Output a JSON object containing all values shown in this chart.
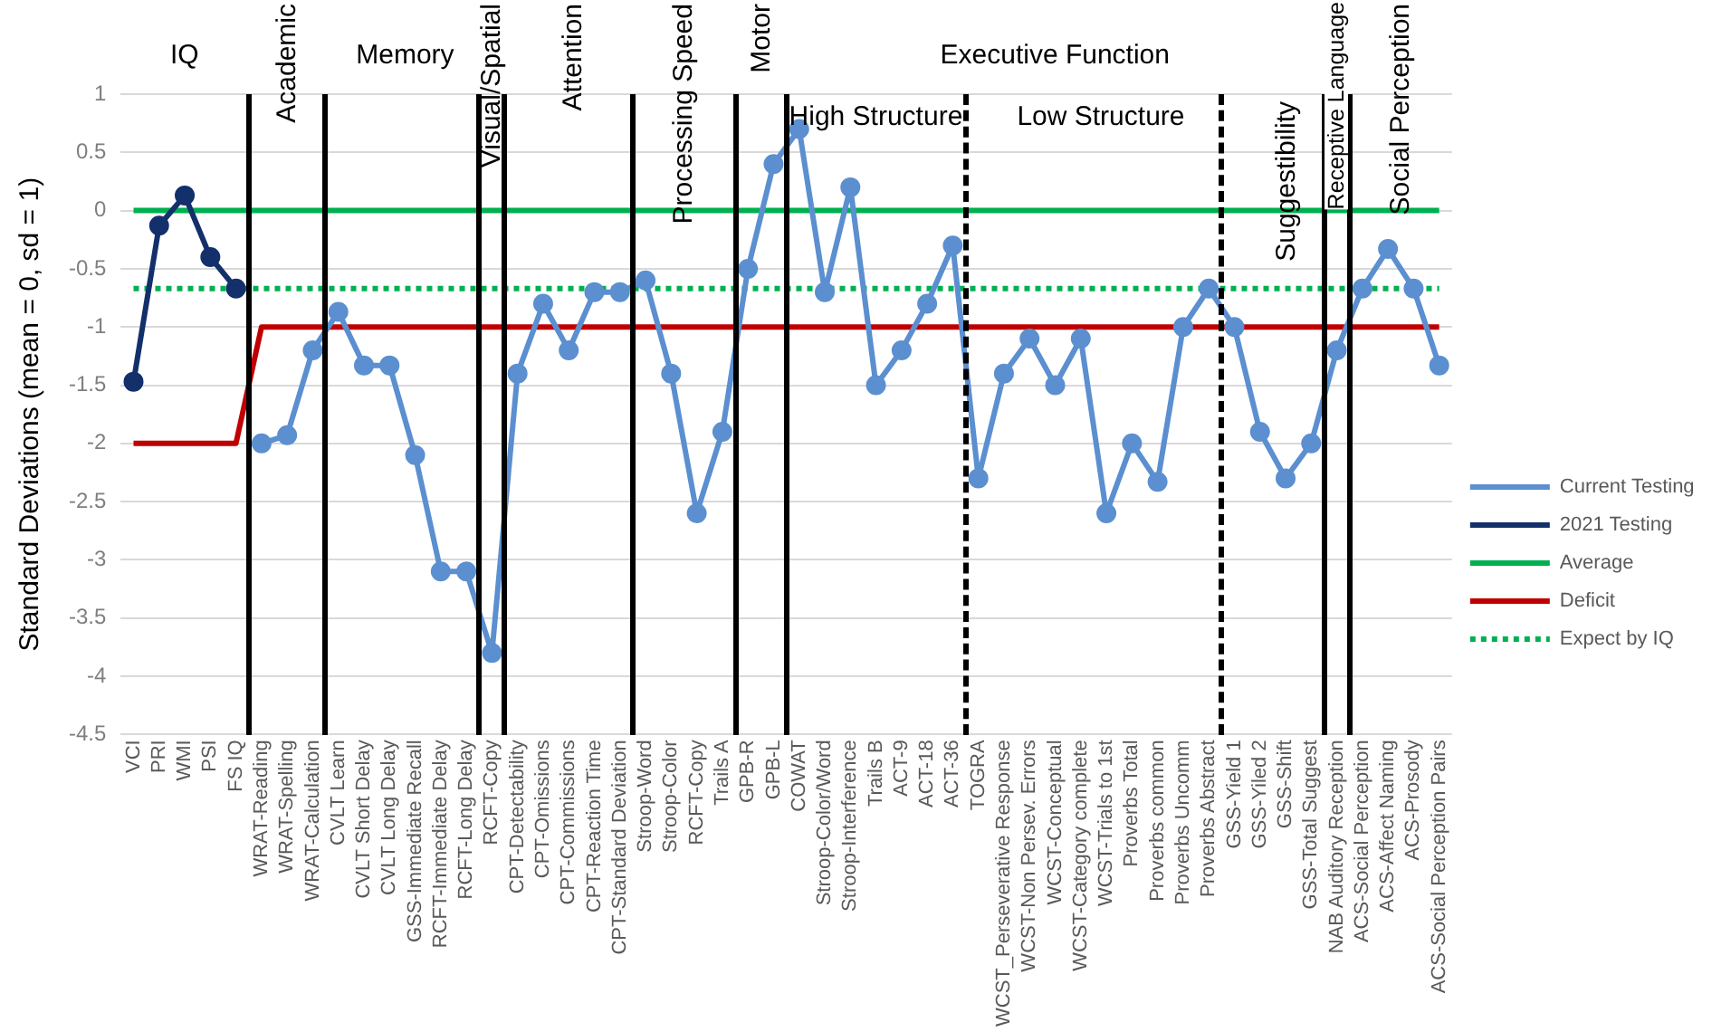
{
  "chart_data": {
    "type": "line",
    "categories": [
      "VCI",
      "PRI",
      "WMI",
      "PSI",
      "FS IQ",
      "WRAT-Reading",
      "WRAT-Spelling",
      "WRAT-Calculation",
      "CVLT Learn",
      "CVLT Short Delay",
      "CVLT Long Delay",
      "GSS-Immediate Recall",
      "RCFT-Immediate Delay",
      "RCFT-Long Delay",
      "RCFT-Copy",
      "CPT-Detectability",
      "CPT-Omissions",
      "CPT-Commissions",
      "CPT-Reaction Time",
      "CPT-Standard Deviation",
      "Stroop-Word",
      "Stroop-Color",
      "RCFT-Copy",
      "Trails A",
      "GPB-R",
      "GPB-L",
      "COWAT",
      "Stroop-Color/Word",
      "Stroop-Interference",
      "Trails B",
      "ACT-9",
      "ACT-18",
      "ACT-36",
      "TOGRA",
      "WCST_Perseverative Response",
      "WCST-Non Persev. Errors",
      "WCST-Conceptual",
      "WCST-Category complete",
      "WCST-Trials to 1st",
      "Proverbs Total",
      "Proverbs common",
      "Proverbs Uncomm",
      "Proverbs Abstract",
      "GSS-Yield 1",
      "GSS-Yiled 2",
      "GSS-Shift",
      "GSS-Total Suggest",
      "NAB Auditory Reception",
      "ACS-Social Perception",
      "ACS-Affect Naming",
      "ACS-Prosody",
      "ACS-Social Perception Pairs"
    ],
    "series": [
      {
        "name": "Current Testing",
        "color": "#5b8fd0",
        "marker": "circle",
        "line_style": "solid",
        "values": [
          null,
          null,
          null,
          null,
          null,
          -2.0,
          -1.93,
          -1.2,
          -0.87,
          -1.33,
          -1.33,
          -2.1,
          -3.1,
          -3.1,
          -3.8,
          -1.4,
          -0.8,
          -1.2,
          -0.7,
          -0.7,
          -0.6,
          -1.4,
          -2.6,
          -1.9,
          -0.5,
          0.4,
          0.7,
          -0.7,
          0.2,
          -1.5,
          -1.2,
          -0.8,
          -0.3,
          -2.3,
          -1.4,
          -1.1,
          -1.5,
          -1.1,
          -2.6,
          -2.0,
          -2.33,
          -1.0,
          -0.67,
          -1.0,
          -1.9,
          -2.3,
          -2.0,
          -1.2,
          -0.67,
          -0.33,
          -0.67,
          -1.33
        ]
      },
      {
        "name": "2021 Testing",
        "color": "#13306b",
        "marker": "circle",
        "line_style": "solid",
        "values": [
          -1.47,
          -0.13,
          0.13,
          -0.4,
          -0.67,
          null,
          null,
          null,
          null,
          null,
          null,
          null,
          null,
          null,
          null,
          null,
          null,
          null,
          null,
          null,
          null,
          null,
          null,
          null,
          null,
          null,
          null,
          null,
          null,
          null,
          null,
          null,
          null,
          null,
          null,
          null,
          null,
          null,
          null,
          null,
          null,
          null,
          null,
          null,
          null,
          null,
          null,
          null,
          null,
          null,
          null,
          null
        ]
      },
      {
        "name": "Average",
        "color": "#00b050",
        "marker": "none",
        "line_style": "solid",
        "values": [
          0,
          0,
          0,
          0,
          0,
          0,
          0,
          0,
          0,
          0,
          0,
          0,
          0,
          0,
          0,
          0,
          0,
          0,
          0,
          0,
          0,
          0,
          0,
          0,
          0,
          0,
          0,
          0,
          0,
          0,
          0,
          0,
          0,
          0,
          0,
          0,
          0,
          0,
          0,
          0,
          0,
          0,
          0,
          0,
          0,
          0,
          0,
          0,
          0,
          0,
          0,
          0
        ]
      },
      {
        "name": "Deficit",
        "color": "#c00000",
        "marker": "none",
        "line_style": "solid",
        "values": [
          -2,
          -2,
          -2,
          -2,
          -2,
          -1,
          -1,
          -1,
          -1,
          -1,
          -1,
          -1,
          -1,
          -1,
          -1,
          -1,
          -1,
          -1,
          -1,
          -1,
          -1,
          -1,
          -1,
          -1,
          -1,
          -1,
          -1,
          -1,
          -1,
          -1,
          -1,
          -1,
          -1,
          -1,
          -1,
          -1,
          -1,
          -1,
          -1,
          -1,
          -1,
          -1,
          -1,
          -1,
          -1,
          -1,
          -1,
          -1,
          -1,
          -1,
          -1,
          -1
        ]
      },
      {
        "name": "Expect by IQ",
        "color": "#00b050",
        "marker": "none",
        "line_style": "dotted",
        "values": [
          -0.67,
          -0.67,
          -0.67,
          -0.67,
          -0.67,
          -0.67,
          -0.67,
          -0.67,
          -0.67,
          -0.67,
          -0.67,
          -0.67,
          -0.67,
          -0.67,
          -0.67,
          -0.67,
          -0.67,
          -0.67,
          -0.67,
          -0.67,
          -0.67,
          -0.67,
          -0.67,
          -0.67,
          -0.67,
          -0.67,
          -0.67,
          -0.67,
          -0.67,
          -0.67,
          -0.67,
          -0.67,
          -0.67,
          -0.67,
          -0.67,
          -0.67,
          -0.67,
          -0.67,
          -0.67,
          -0.67,
          -0.67,
          -0.67,
          -0.67,
          -0.67,
          -0.67,
          -0.67,
          -0.67,
          -0.67,
          -0.67,
          -0.67,
          -0.67,
          -0.67
        ]
      }
    ],
    "ylabel": "Standard Deviations (mean = 0, sd = 1)",
    "ylim": [
      -4.5,
      1
    ],
    "yticks": [
      -4.5,
      -4,
      -3.5,
      -3,
      -2.5,
      -2,
      -1.5,
      -1,
      -0.5,
      0,
      0.5,
      1
    ],
    "grid": "y",
    "legend": "right",
    "annotations": [
      "IQ",
      "Academic",
      "Memory",
      "Visual/Spatial",
      "Attention",
      "Processing Speed",
      "Motor",
      "Executive Function",
      "High Structure",
      "Low Structure",
      "Suggestibility",
      "Receptive Language",
      "Social Perception"
    ]
  }
}
